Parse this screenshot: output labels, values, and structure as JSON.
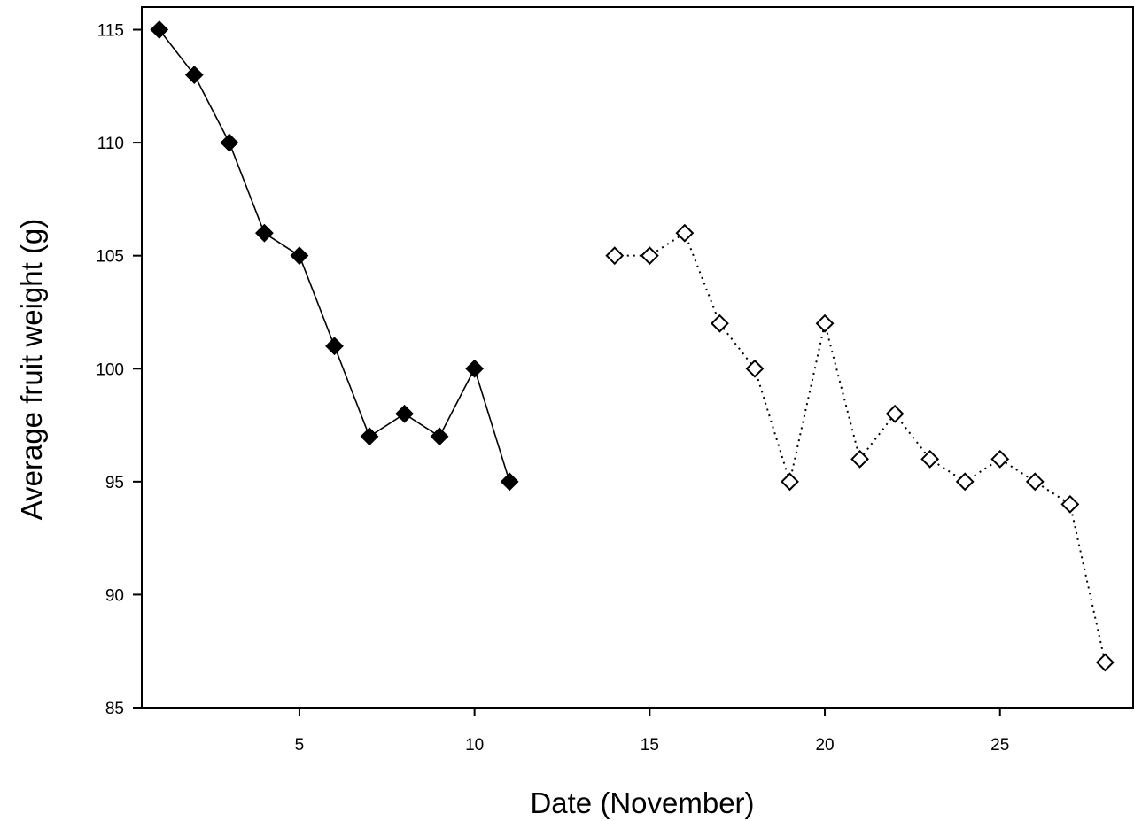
{
  "chart_data": {
    "type": "scatter",
    "xlabel": "Date (November)",
    "ylabel": "Average fruit weight (g)",
    "xlim": [
      0.5,
      28.8
    ],
    "ylim": [
      85,
      116
    ],
    "xticks": [
      5,
      10,
      15,
      20,
      25
    ],
    "yticks": [
      85,
      90,
      95,
      100,
      105,
      110,
      115
    ],
    "grid": false,
    "series": [
      {
        "marker": "filled-diamond",
        "line": "solid",
        "color": "#000000",
        "x": [
          1,
          2,
          3,
          4,
          5,
          6,
          7,
          8,
          9,
          10,
          11
        ],
        "y": [
          115,
          113,
          110,
          106,
          105,
          101,
          97,
          98,
          97,
          100,
          95
        ]
      },
      {
        "marker": "open-diamond",
        "line": "dotted",
        "color": "#000000",
        "x": [
          14,
          15,
          16,
          17,
          18,
          19,
          20,
          21,
          22,
          23,
          24,
          25,
          26,
          27,
          28
        ],
        "y": [
          105,
          105,
          106,
          102,
          100,
          95,
          102,
          96,
          98,
          96,
          95,
          96,
          95,
          94,
          87
        ]
      }
    ]
  }
}
